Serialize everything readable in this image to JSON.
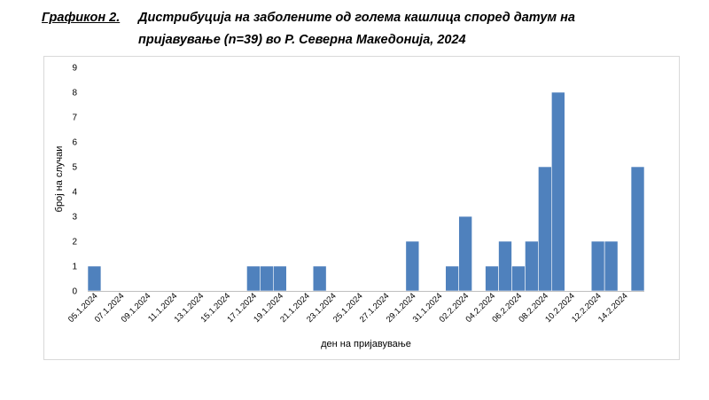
{
  "title": {
    "label": "Графикон 2.",
    "line1": "Дистрибуција на заболените од голема кашлица според датум на",
    "line2": "пријавување (n=39) во Р. Северна Македонија, 2024"
  },
  "chart_data": {
    "type": "bar",
    "xlabel": "ден на пријавување",
    "ylabel": "број на случаи",
    "ylim": [
      0,
      9
    ],
    "yticks": [
      0,
      1,
      2,
      3,
      4,
      5,
      6,
      7,
      8,
      9
    ],
    "grid": false,
    "legend": "none",
    "color": "#4f81bd",
    "categories": [
      "05.1.2024",
      "06.1.2024",
      "07.1.2024",
      "08.1.2024",
      "09.1.2024",
      "10.1.2024",
      "11.1.2024",
      "12.1.2024",
      "13.1.2024",
      "14.1.2024",
      "15.1.2024",
      "16.1.2024",
      "17.1.2024",
      "18.1.2024",
      "19.1.2024",
      "20.1.2024",
      "21.1.2024",
      "22.1.2024",
      "23.1.2024",
      "24.1.2024",
      "25.1.2024",
      "26.1.2024",
      "27.1.2024",
      "28.1.2024",
      "29.1.2024",
      "30.1.2024",
      "31.1.2024",
      "01.2.2024",
      "02.2.2024",
      "03.2.2024",
      "04.2.2024",
      "05.2.2024",
      "06.2.2024",
      "07.2.2024",
      "08.2.2024",
      "09.2.2024",
      "10.2.2024",
      "11.2.2024",
      "12.2.2024",
      "13.2.2024",
      "14.2.2024",
      "15.2.2024"
    ],
    "tick_labels": [
      "05.1.2024",
      "07.1.2024",
      "09.1.2024",
      "11.1.2024",
      "13.1.2024",
      "15.1.2024",
      "17.1.2024",
      "19.1.2024",
      "21.1.2024",
      "23.1.2024",
      "25.1.2024",
      "27.1.2024",
      "29.1.2024",
      "31.1.2024",
      "02.2.2024",
      "04.2.2024",
      "06.2.2024",
      "08.2.2024",
      "10.2.2024",
      "12.2.2024",
      "14.2.2024"
    ],
    "values": [
      1,
      0,
      0,
      0,
      0,
      0,
      0,
      0,
      0,
      0,
      0,
      0,
      1,
      1,
      1,
      0,
      0,
      1,
      0,
      0,
      0,
      0,
      0,
      0,
      2,
      0,
      0,
      1,
      3,
      0,
      1,
      2,
      1,
      2,
      5,
      8,
      0,
      0,
      2,
      2,
      0,
      5
    ]
  }
}
